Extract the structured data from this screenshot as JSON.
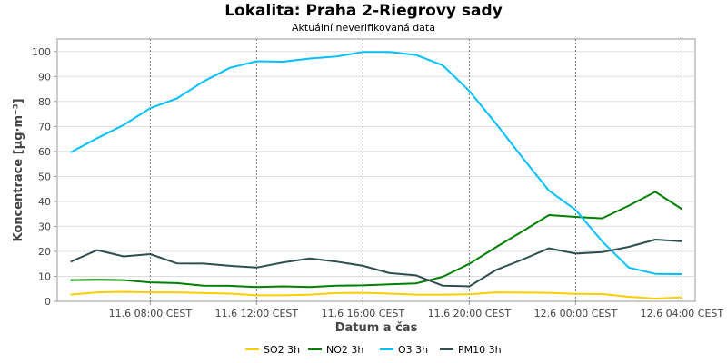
{
  "chart_data": {
    "type": "line",
    "title": "Lokalita: Praha 2-Riegrovy sady",
    "subtitle": "Aktuální neverifikovaná data",
    "xlabel": "Datum a čas",
    "ylabel": "Koncentrace [µg·m⁻³]",
    "ylim": [
      0,
      105
    ],
    "yticks": [
      0,
      10,
      20,
      30,
      40,
      50,
      60,
      70,
      80,
      90,
      100
    ],
    "xlim": [
      4.5,
      28.5
    ],
    "xticks": [
      {
        "x": 8,
        "label": "11.6 08:00 CEST"
      },
      {
        "x": 12,
        "label": "11.6 12:00 CEST"
      },
      {
        "x": 16,
        "label": "11.6 16:00 CEST"
      },
      {
        "x": 20,
        "label": "11.6 20:00 CEST"
      },
      {
        "x": 24,
        "label": "12.6 00:00 CEST"
      },
      {
        "x": 28,
        "label": "12.6 04:00 CEST"
      }
    ],
    "x": [
      5,
      6,
      7,
      8,
      9,
      10,
      11,
      12,
      13,
      14,
      15,
      16,
      17,
      18,
      19,
      20,
      21,
      22,
      23,
      24,
      25,
      26,
      27,
      28
    ],
    "series": [
      {
        "name": "SO2 3h",
        "color": "#ffcc00",
        "values": [
          2.7,
          3.6,
          3.8,
          3.6,
          3.6,
          3.3,
          3.1,
          2.4,
          2.4,
          2.7,
          3.3,
          3.4,
          3.1,
          2.7,
          2.7,
          2.8,
          3.6,
          3.5,
          3.4,
          3.0,
          2.9,
          1.8,
          1.1,
          1.6
        ]
      },
      {
        "name": "NO2 3h",
        "color": "#008000",
        "values": [
          8.5,
          8.6,
          8.5,
          7.6,
          7.3,
          6.3,
          6.2,
          5.7,
          6.0,
          5.7,
          6.3,
          6.4,
          6.8,
          7.2,
          9.8,
          15.0,
          21.6,
          28.0,
          34.5,
          33.8,
          33.2,
          38.3,
          43.8,
          36.9
        ]
      },
      {
        "name": "O3 3h",
        "color": "#00bfff",
        "values": [
          59.6,
          65.3,
          70.6,
          77.3,
          81.2,
          88.0,
          93.5,
          96.1,
          95.9,
          97.2,
          98.0,
          99.8,
          99.8,
          98.6,
          94.5,
          84.2,
          71.2,
          57.5,
          44.3,
          36.6,
          24.0,
          13.5,
          11.0,
          10.9
        ]
      },
      {
        "name": "PM10 3h",
        "color": "#2f4f4f",
        "values": [
          15.8,
          20.5,
          18.0,
          18.9,
          15.2,
          15.1,
          14.2,
          13.5,
          15.6,
          17.2,
          15.9,
          14.2,
          11.3,
          10.4,
          6.3,
          6.0,
          12.5,
          16.7,
          21.2,
          19.1,
          19.7,
          21.8,
          24.7,
          24.0
        ]
      }
    ],
    "grid": true,
    "legend_position": "bottom"
  }
}
